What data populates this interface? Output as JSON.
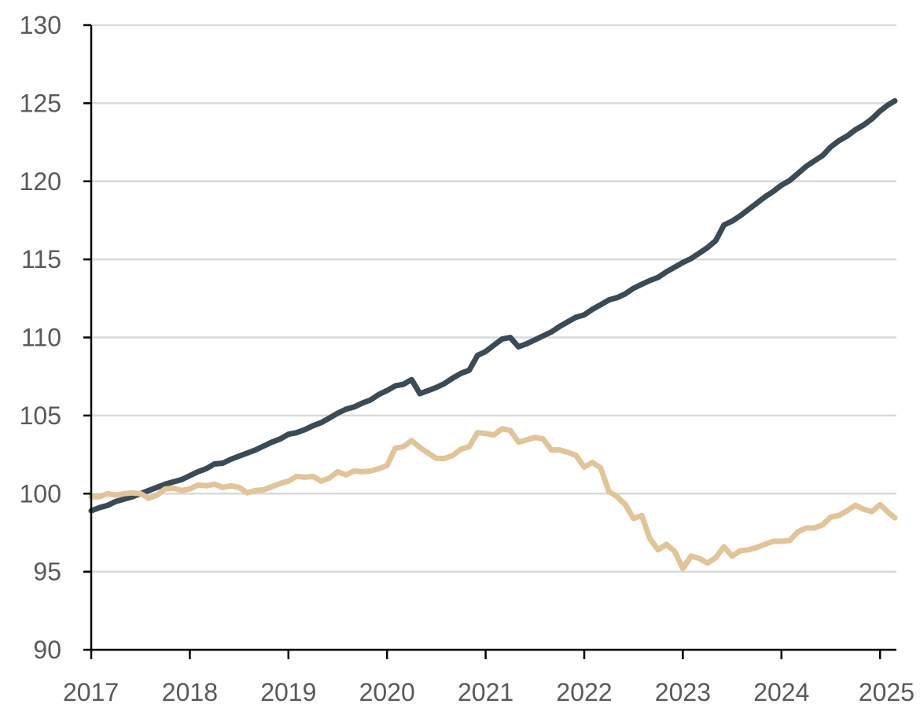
{
  "chart_data": {
    "type": "line",
    "title": "",
    "xlabel": "",
    "ylabel": "",
    "xlim": [
      2017,
      2025.15
    ],
    "ylim": [
      90,
      130
    ],
    "y_ticks": [
      90,
      95,
      100,
      105,
      110,
      115,
      120,
      125,
      130
    ],
    "x_ticks": [
      2017,
      2018,
      2019,
      2020,
      2021,
      2022,
      2023,
      2024,
      2025
    ],
    "y_tick_labels": [
      "90",
      "95",
      "100",
      "105",
      "110",
      "115",
      "120",
      "125",
      "130"
    ],
    "x_tick_labels": [
      "2017",
      "2018",
      "2019",
      "2020",
      "2021",
      "2022",
      "2023",
      "2024",
      "2025"
    ],
    "grid": "horizontal",
    "legend": "none",
    "series": [
      {
        "color": "#3a4a56",
        "points": [
          [
            2017.0,
            98.9
          ],
          [
            2017.083,
            99.1
          ],
          [
            2017.167,
            99.25
          ],
          [
            2017.25,
            99.5
          ],
          [
            2017.333,
            99.65
          ],
          [
            2017.417,
            99.8
          ],
          [
            2017.5,
            100.0
          ],
          [
            2017.583,
            100.2
          ],
          [
            2017.667,
            100.4
          ],
          [
            2017.75,
            100.6
          ],
          [
            2017.833,
            100.75
          ],
          [
            2017.917,
            100.9
          ],
          [
            2018.0,
            101.15
          ],
          [
            2018.083,
            101.4
          ],
          [
            2018.167,
            101.6
          ],
          [
            2018.25,
            101.9
          ],
          [
            2018.333,
            101.95
          ],
          [
            2018.417,
            102.2
          ],
          [
            2018.5,
            102.4
          ],
          [
            2018.583,
            102.6
          ],
          [
            2018.667,
            102.8
          ],
          [
            2018.75,
            103.05
          ],
          [
            2018.833,
            103.3
          ],
          [
            2018.917,
            103.5
          ],
          [
            2019.0,
            103.8
          ],
          [
            2019.083,
            103.9
          ],
          [
            2019.167,
            104.1
          ],
          [
            2019.25,
            104.35
          ],
          [
            2019.333,
            104.55
          ],
          [
            2019.417,
            104.85
          ],
          [
            2019.5,
            105.15
          ],
          [
            2019.583,
            105.4
          ],
          [
            2019.667,
            105.55
          ],
          [
            2019.75,
            105.8
          ],
          [
            2019.833,
            106.0
          ],
          [
            2019.917,
            106.35
          ],
          [
            2020.0,
            106.6
          ],
          [
            2020.083,
            106.9
          ],
          [
            2020.167,
            107.0
          ],
          [
            2020.25,
            107.3
          ],
          [
            2020.333,
            106.4
          ],
          [
            2020.417,
            106.6
          ],
          [
            2020.5,
            106.8
          ],
          [
            2020.583,
            107.05
          ],
          [
            2020.667,
            107.4
          ],
          [
            2020.75,
            107.7
          ],
          [
            2020.833,
            107.9
          ],
          [
            2020.917,
            108.85
          ],
          [
            2021.0,
            109.1
          ],
          [
            2021.083,
            109.5
          ],
          [
            2021.167,
            109.9
          ],
          [
            2021.25,
            110.0
          ],
          [
            2021.333,
            109.4
          ],
          [
            2021.417,
            109.6
          ],
          [
            2021.5,
            109.85
          ],
          [
            2021.583,
            110.1
          ],
          [
            2021.667,
            110.35
          ],
          [
            2021.75,
            110.7
          ],
          [
            2021.833,
            111.0
          ],
          [
            2021.917,
            111.3
          ],
          [
            2022.0,
            111.45
          ],
          [
            2022.083,
            111.8
          ],
          [
            2022.167,
            112.1
          ],
          [
            2022.25,
            112.4
          ],
          [
            2022.333,
            112.55
          ],
          [
            2022.417,
            112.8
          ],
          [
            2022.5,
            113.15
          ],
          [
            2022.583,
            113.4
          ],
          [
            2022.667,
            113.65
          ],
          [
            2022.75,
            113.85
          ],
          [
            2022.833,
            114.2
          ],
          [
            2022.917,
            114.5
          ],
          [
            2023.0,
            114.8
          ],
          [
            2023.083,
            115.05
          ],
          [
            2023.167,
            115.4
          ],
          [
            2023.25,
            115.75
          ],
          [
            2023.333,
            116.2
          ],
          [
            2023.417,
            117.2
          ],
          [
            2023.5,
            117.45
          ],
          [
            2023.583,
            117.8
          ],
          [
            2023.667,
            118.2
          ],
          [
            2023.75,
            118.6
          ],
          [
            2023.833,
            119.0
          ],
          [
            2023.917,
            119.35
          ],
          [
            2024.0,
            119.75
          ],
          [
            2024.083,
            120.05
          ],
          [
            2024.167,
            120.5
          ],
          [
            2024.25,
            120.95
          ],
          [
            2024.333,
            121.3
          ],
          [
            2024.417,
            121.65
          ],
          [
            2024.5,
            122.2
          ],
          [
            2024.583,
            122.6
          ],
          [
            2024.667,
            122.9
          ],
          [
            2024.75,
            123.3
          ],
          [
            2024.833,
            123.6
          ],
          [
            2024.917,
            124.0
          ],
          [
            2025.0,
            124.5
          ],
          [
            2025.083,
            124.9
          ],
          [
            2025.15,
            125.15
          ]
        ]
      },
      {
        "color": "#e2c49a",
        "points": [
          [
            2017.0,
            99.8
          ],
          [
            2017.083,
            99.8
          ],
          [
            2017.167,
            100.0
          ],
          [
            2017.25,
            99.9
          ],
          [
            2017.333,
            100.0
          ],
          [
            2017.417,
            100.05
          ],
          [
            2017.5,
            100.0
          ],
          [
            2017.583,
            99.7
          ],
          [
            2017.667,
            99.9
          ],
          [
            2017.75,
            100.3
          ],
          [
            2017.833,
            100.35
          ],
          [
            2017.917,
            100.2
          ],
          [
            2018.0,
            100.3
          ],
          [
            2018.083,
            100.55
          ],
          [
            2018.167,
            100.5
          ],
          [
            2018.25,
            100.6
          ],
          [
            2018.333,
            100.4
          ],
          [
            2018.417,
            100.5
          ],
          [
            2018.5,
            100.4
          ],
          [
            2018.583,
            100.05
          ],
          [
            2018.667,
            100.2
          ],
          [
            2018.75,
            100.25
          ],
          [
            2018.833,
            100.45
          ],
          [
            2018.917,
            100.65
          ],
          [
            2019.0,
            100.8
          ],
          [
            2019.083,
            101.1
          ],
          [
            2019.167,
            101.05
          ],
          [
            2019.25,
            101.1
          ],
          [
            2019.333,
            100.8
          ],
          [
            2019.417,
            101.0
          ],
          [
            2019.5,
            101.4
          ],
          [
            2019.583,
            101.2
          ],
          [
            2019.667,
            101.45
          ],
          [
            2019.75,
            101.4
          ],
          [
            2019.833,
            101.45
          ],
          [
            2019.917,
            101.6
          ],
          [
            2020.0,
            101.8
          ],
          [
            2020.083,
            102.9
          ],
          [
            2020.167,
            103.0
          ],
          [
            2020.25,
            103.4
          ],
          [
            2020.333,
            102.95
          ],
          [
            2020.417,
            102.6
          ],
          [
            2020.5,
            102.25
          ],
          [
            2020.583,
            102.25
          ],
          [
            2020.667,
            102.45
          ],
          [
            2020.75,
            102.85
          ],
          [
            2020.833,
            103.0
          ],
          [
            2020.917,
            103.9
          ],
          [
            2021.0,
            103.85
          ],
          [
            2021.083,
            103.75
          ],
          [
            2021.167,
            104.15
          ],
          [
            2021.25,
            104.05
          ],
          [
            2021.333,
            103.3
          ],
          [
            2021.417,
            103.45
          ],
          [
            2021.5,
            103.6
          ],
          [
            2021.583,
            103.5
          ],
          [
            2021.667,
            102.8
          ],
          [
            2021.75,
            102.8
          ],
          [
            2021.833,
            102.65
          ],
          [
            2021.917,
            102.45
          ],
          [
            2022.0,
            101.7
          ],
          [
            2022.083,
            102.0
          ],
          [
            2022.167,
            101.65
          ],
          [
            2022.25,
            100.15
          ],
          [
            2022.333,
            99.8
          ],
          [
            2022.417,
            99.3
          ],
          [
            2022.5,
            98.4
          ],
          [
            2022.583,
            98.6
          ],
          [
            2022.667,
            97.1
          ],
          [
            2022.75,
            96.4
          ],
          [
            2022.833,
            96.75
          ],
          [
            2022.917,
            96.3
          ],
          [
            2023.0,
            95.2
          ],
          [
            2023.083,
            96.0
          ],
          [
            2023.167,
            95.85
          ],
          [
            2023.25,
            95.55
          ],
          [
            2023.333,
            95.9
          ],
          [
            2023.417,
            96.6
          ],
          [
            2023.5,
            96.0
          ],
          [
            2023.583,
            96.35
          ],
          [
            2023.667,
            96.4
          ],
          [
            2023.75,
            96.55
          ],
          [
            2023.833,
            96.75
          ],
          [
            2023.917,
            96.95
          ],
          [
            2024.0,
            96.95
          ],
          [
            2024.083,
            97.0
          ],
          [
            2024.167,
            97.55
          ],
          [
            2024.25,
            97.8
          ],
          [
            2024.333,
            97.8
          ],
          [
            2024.417,
            98.0
          ],
          [
            2024.5,
            98.5
          ],
          [
            2024.583,
            98.6
          ],
          [
            2024.667,
            98.9
          ],
          [
            2024.75,
            99.25
          ],
          [
            2024.833,
            99.0
          ],
          [
            2024.917,
            98.85
          ],
          [
            2025.0,
            99.3
          ],
          [
            2025.083,
            98.8
          ],
          [
            2025.15,
            98.45
          ]
        ]
      }
    ]
  }
}
